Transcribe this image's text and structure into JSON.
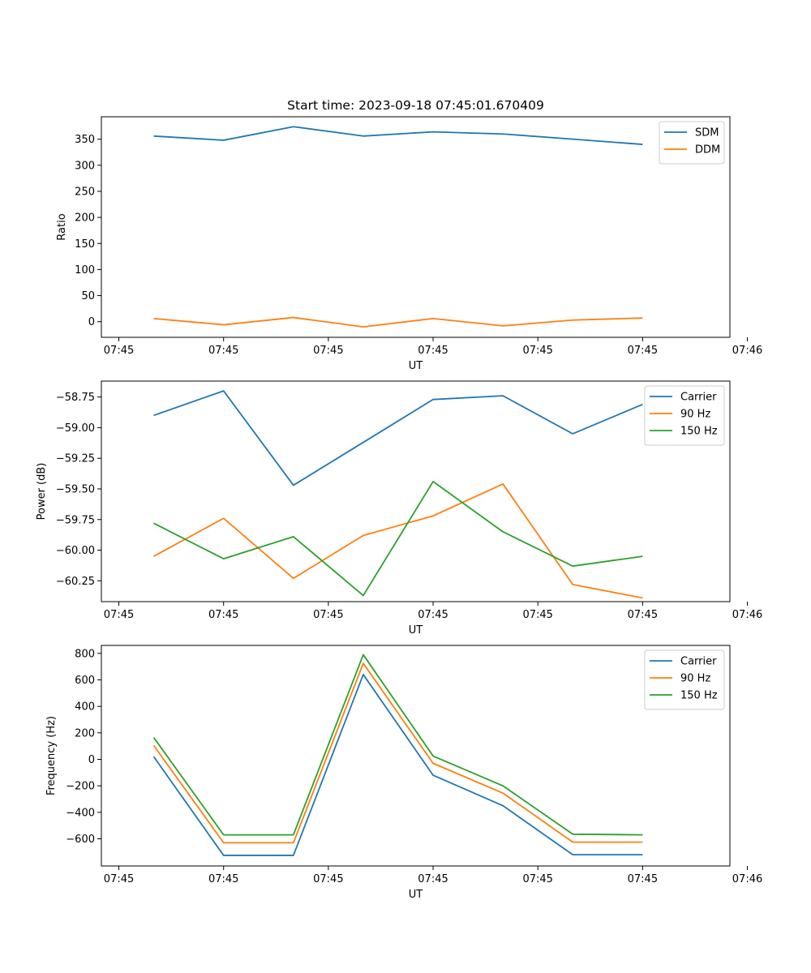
{
  "figure_title": "Start time: 2023-09-18 07:45:01.670409",
  "colors": {
    "blue": "#1f77b4",
    "orange": "#ff7f0e",
    "green": "#2ca02c"
  },
  "chart_data": [
    {
      "type": "line",
      "title": "Start time: 2023-09-18 07:45:01.670409",
      "xlabel": "UT",
      "ylabel": "Ratio",
      "x": [
        1,
        2,
        3,
        4,
        5,
        6,
        7,
        8
      ],
      "xlim": [
        0.25,
        9.25
      ],
      "xticks": [
        0.5,
        2,
        3.5,
        5,
        6.5,
        8,
        9.5
      ],
      "xtick_labels": [
        "07:45",
        "07:45",
        "07:45",
        "07:45",
        "07:45",
        "07:45",
        "07:46"
      ],
      "ylim": [
        -30,
        393
      ],
      "yticks": [
        0,
        50,
        100,
        150,
        200,
        250,
        300,
        350
      ],
      "ytick_labels": [
        "0",
        "50",
        "100",
        "150",
        "200",
        "250",
        "300",
        "350"
      ],
      "legend": "top-right",
      "series": [
        {
          "name": "SDM",
          "color": "#1f77b4",
          "values": [
            356,
            348,
            374,
            356,
            364,
            360,
            350,
            340
          ]
        },
        {
          "name": "DDM",
          "color": "#ff7f0e",
          "values": [
            6,
            -6,
            8,
            -10,
            6,
            -8,
            3,
            7
          ]
        }
      ]
    },
    {
      "type": "line",
      "title": "",
      "xlabel": "UT",
      "ylabel": "Power (dB)",
      "x": [
        1,
        2,
        3,
        4,
        5,
        6,
        7,
        8
      ],
      "xlim": [
        0.25,
        9.25
      ],
      "xticks": [
        0.5,
        2,
        3.5,
        5,
        6.5,
        8,
        9.5
      ],
      "xtick_labels": [
        "07:45",
        "07:45",
        "07:45",
        "07:45",
        "07:45",
        "07:45",
        "07:46"
      ],
      "ylim": [
        -60.42,
        -58.62
      ],
      "yticks": [
        -60.25,
        -60.0,
        -59.75,
        -59.5,
        -59.25,
        -59.0,
        -58.75
      ],
      "ytick_labels": [
        "−60.25",
        "−60.00",
        "−59.75",
        "−59.50",
        "−59.25",
        "−59.00",
        "−58.75"
      ],
      "legend": "top-right",
      "series": [
        {
          "name": "Carrier",
          "color": "#1f77b4",
          "values": [
            -58.9,
            -58.7,
            -59.47,
            -59.12,
            -58.77,
            -58.74,
            -59.05,
            -58.81
          ]
        },
        {
          "name": "90 Hz",
          "color": "#ff7f0e",
          "values": [
            -60.05,
            -59.74,
            -60.23,
            -59.88,
            -59.72,
            -59.46,
            -60.28,
            -60.39
          ]
        },
        {
          "name": "150 Hz",
          "color": "#2ca02c",
          "values": [
            -59.78,
            -60.07,
            -59.89,
            -60.37,
            -59.44,
            -59.85,
            -60.13,
            -60.05
          ]
        }
      ]
    },
    {
      "type": "line",
      "title": "",
      "xlabel": "UT",
      "ylabel": "Frequency (Hz)",
      "x": [
        1,
        2,
        3,
        4,
        5,
        6,
        7,
        8
      ],
      "xlim": [
        0.25,
        9.25
      ],
      "xticks": [
        0.5,
        2,
        3.5,
        5,
        6.5,
        8,
        9.5
      ],
      "xtick_labels": [
        "07:45",
        "07:45",
        "07:45",
        "07:45",
        "07:45",
        "07:45",
        "07:46"
      ],
      "ylim": [
        -805,
        860
      ],
      "yticks": [
        -600,
        -400,
        -200,
        0,
        200,
        400,
        600,
        800
      ],
      "ytick_labels": [
        "−600",
        "−400",
        "−200",
        "0",
        "200",
        "400",
        "600",
        "800"
      ],
      "legend": "top-right",
      "series": [
        {
          "name": "Carrier",
          "color": "#1f77b4",
          "values": [
            20,
            -725,
            -725,
            640,
            -120,
            -350,
            -720,
            -720
          ]
        },
        {
          "name": "90 Hz",
          "color": "#ff7f0e",
          "values": [
            105,
            -630,
            -630,
            725,
            -30,
            -255,
            -625,
            -625
          ]
        },
        {
          "name": "150 Hz",
          "color": "#2ca02c",
          "values": [
            165,
            -570,
            -570,
            790,
            25,
            -200,
            -565,
            -570
          ]
        }
      ]
    }
  ]
}
